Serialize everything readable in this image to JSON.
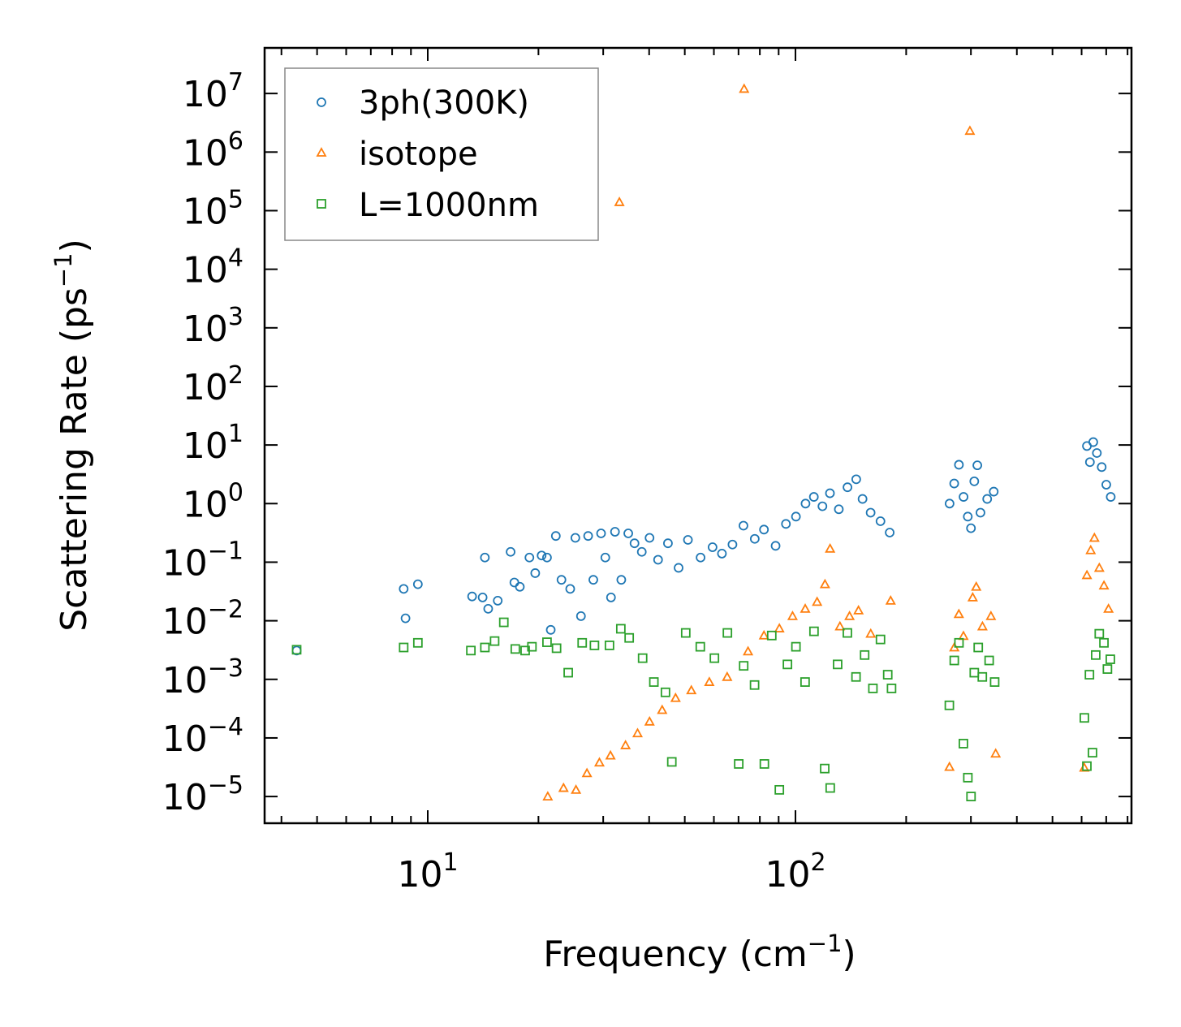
{
  "chart_data": {
    "type": "scatter",
    "title": "",
    "xlabel": "Frequency (cm",
    "xlabel_sup": "−1",
    "xlabel_end": ")",
    "ylabel": "Scattering Rate (ps",
    "ylabel_sup": "−1",
    "ylabel_end": ")",
    "xscale": "log",
    "yscale": "log",
    "xlim": [
      3.6,
      820
    ],
    "ylim": [
      3.5e-06,
      60000000.0
    ],
    "x_ticks": [
      {
        "value": 10,
        "base": "10",
        "exp": "1"
      },
      {
        "value": 100,
        "base": "10",
        "exp": "2"
      }
    ],
    "y_ticks": [
      {
        "value": 1e-05,
        "base": "10",
        "exp": "−5"
      },
      {
        "value": 0.0001,
        "base": "10",
        "exp": "−4"
      },
      {
        "value": 0.001,
        "base": "10",
        "exp": "−3"
      },
      {
        "value": 0.01,
        "base": "10",
        "exp": "−2"
      },
      {
        "value": 0.1,
        "base": "10",
        "exp": "−1"
      },
      {
        "value": 1,
        "base": "10",
        "exp": "0"
      },
      {
        "value": 10,
        "base": "10",
        "exp": "1"
      },
      {
        "value": 100,
        "base": "10",
        "exp": "2"
      },
      {
        "value": 1000,
        "base": "10",
        "exp": "3"
      },
      {
        "value": 10000,
        "base": "10",
        "exp": "4"
      },
      {
        "value": 100000,
        "base": "10",
        "exp": "5"
      },
      {
        "value": 1000000,
        "base": "10",
        "exp": "6"
      },
      {
        "value": 10000000,
        "base": "10",
        "exp": "7"
      }
    ],
    "legend_position": "top-left",
    "series": [
      {
        "name": "3ph(300K)",
        "marker": "circle",
        "color": "#1f77b4",
        "points": [
          [
            4.4,
            0.0031
          ],
          [
            8.6,
            0.035
          ],
          [
            8.7,
            0.011
          ],
          [
            9.4,
            0.042
          ],
          [
            13.2,
            0.026
          ],
          [
            14.1,
            0.025
          ],
          [
            14.3,
            0.12
          ],
          [
            14.6,
            0.016
          ],
          [
            15.5,
            0.022
          ],
          [
            16.8,
            0.15
          ],
          [
            17.2,
            0.045
          ],
          [
            17.8,
            0.038
          ],
          [
            18.9,
            0.12
          ],
          [
            19.6,
            0.065
          ],
          [
            20.4,
            0.13
          ],
          [
            21.1,
            0.12
          ],
          [
            21.6,
            0.007
          ],
          [
            22.3,
            0.28
          ],
          [
            23.1,
            0.05
          ],
          [
            24.4,
            0.035
          ],
          [
            25.2,
            0.26
          ],
          [
            26.1,
            0.012
          ],
          [
            27.3,
            0.28
          ],
          [
            28.2,
            0.05
          ],
          [
            29.6,
            0.31
          ],
          [
            30.4,
            0.12
          ],
          [
            31.5,
            0.025
          ],
          [
            32.3,
            0.33
          ],
          [
            33.6,
            0.05
          ],
          [
            35.1,
            0.31
          ],
          [
            36.5,
            0.21
          ],
          [
            38.2,
            0.15
          ],
          [
            40.1,
            0.26
          ],
          [
            42.3,
            0.11
          ],
          [
            45.0,
            0.21
          ],
          [
            48.1,
            0.08
          ],
          [
            51.0,
            0.24
          ],
          [
            55.2,
            0.12
          ],
          [
            59.5,
            0.18
          ],
          [
            63.1,
            0.14
          ],
          [
            67.4,
            0.2
          ],
          [
            72.2,
            0.42
          ],
          [
            77.5,
            0.25
          ],
          [
            82.1,
            0.36
          ],
          [
            88.3,
            0.19
          ],
          [
            94.2,
            0.45
          ],
          [
            100.3,
            0.6
          ],
          [
            106.5,
            1.0
          ],
          [
            112.2,
            1.3
          ],
          [
            118.4,
            0.9
          ],
          [
            124.1,
            1.5
          ],
          [
            131.2,
            0.8
          ],
          [
            138.5,
            1.9
          ],
          [
            146.3,
            2.6
          ],
          [
            152.2,
            1.2
          ],
          [
            160.1,
            0.7
          ],
          [
            170.3,
            0.5
          ],
          [
            180.4,
            0.32
          ],
          [
            262.5,
            1.0
          ],
          [
            270.2,
            2.2
          ],
          [
            278.3,
            4.6
          ],
          [
            286.5,
            1.3
          ],
          [
            294.2,
            0.6
          ],
          [
            300.1,
            0.38
          ],
          [
            306.4,
            2.4
          ],
          [
            312.3,
            4.5
          ],
          [
            318.5,
            0.7
          ],
          [
            332.2,
            1.2
          ],
          [
            346.1,
            1.6
          ],
          [
            620.3,
            9.6
          ],
          [
            632.1,
            5.1
          ],
          [
            645.4,
            11.2
          ],
          [
            660.2,
            7.3
          ],
          [
            680.5,
            4.2
          ],
          [
            700.3,
            2.1
          ],
          [
            720.1,
            1.3
          ]
        ]
      },
      {
        "name": "isotope",
        "marker": "triangle",
        "color": "#ff7f0e",
        "points": [
          [
            21.2,
            1e-05
          ],
          [
            23.4,
            1.4e-05
          ],
          [
            25.3,
            1.3e-05
          ],
          [
            27.1,
            2.5e-05
          ],
          [
            29.3,
            3.8e-05
          ],
          [
            31.4,
            5e-05
          ],
          [
            33.2,
            140000.0
          ],
          [
            34.5,
            7.5e-05
          ],
          [
            37.2,
            0.00012
          ],
          [
            40.1,
            0.00019
          ],
          [
            43.4,
            0.0003
          ],
          [
            47.2,
            0.00048
          ],
          [
            52.1,
            0.00065
          ],
          [
            58.3,
            0.0009
          ],
          [
            65.2,
            0.0011
          ],
          [
            72.5,
            12000000.0
          ],
          [
            74.3,
            0.003
          ],
          [
            82.1,
            0.0056
          ],
          [
            90.4,
            0.0074
          ],
          [
            98.2,
            0.012
          ],
          [
            106.3,
            0.016
          ],
          [
            114.5,
            0.021
          ],
          [
            120.3,
            0.042
          ],
          [
            124.2,
            0.17
          ],
          [
            132.1,
            0.008
          ],
          [
            140.3,
            0.012
          ],
          [
            148.4,
            0.015
          ],
          [
            160.2,
            0.006
          ],
          [
            181.5,
            0.022
          ],
          [
            262.3,
            3.2e-05
          ],
          [
            270.4,
            0.0035
          ],
          [
            278.2,
            0.013
          ],
          [
            286.3,
            0.0055
          ],
          [
            298.1,
            2300000.0
          ],
          [
            303.4,
            0.025
          ],
          [
            310.2,
            0.038
          ],
          [
            322.5,
            0.008
          ],
          [
            340.1,
            0.012
          ],
          [
            350.3,
            5.4e-05
          ],
          [
            610.2,
            3.1e-05
          ],
          [
            620.4,
            0.06
          ],
          [
            635.2,
            0.16
          ],
          [
            650.1,
            0.26
          ],
          [
            670.3,
            0.08
          ],
          [
            690.2,
            0.04
          ],
          [
            710.1,
            0.016
          ]
        ]
      },
      {
        "name": "L=1000nm",
        "marker": "square",
        "color": "#2ca02c",
        "points": [
          [
            4.4,
            0.0032
          ],
          [
            8.6,
            0.0035
          ],
          [
            9.4,
            0.0042
          ],
          [
            13.1,
            0.0031
          ],
          [
            14.3,
            0.0035
          ],
          [
            15.2,
            0.0045
          ],
          [
            16.1,
            0.0094
          ],
          [
            17.3,
            0.0033
          ],
          [
            18.4,
            0.0031
          ],
          [
            19.2,
            0.0036
          ],
          [
            21.1,
            0.0043
          ],
          [
            22.4,
            0.0034
          ],
          [
            24.1,
            0.0013
          ],
          [
            26.3,
            0.0042
          ],
          [
            28.4,
            0.0038
          ],
          [
            31.2,
            0.0038
          ],
          [
            33.5,
            0.0073
          ],
          [
            35.3,
            0.0051
          ],
          [
            38.4,
            0.0023
          ],
          [
            41.2,
            0.0009
          ],
          [
            44.3,
            0.0006
          ],
          [
            46.1,
            3.9e-05
          ],
          [
            50.3,
            0.0062
          ],
          [
            55.1,
            0.0036
          ],
          [
            60.2,
            0.0023
          ],
          [
            65.3,
            0.0062
          ],
          [
            70.1,
            3.6e-05
          ],
          [
            72.3,
            0.0017
          ],
          [
            77.4,
            0.0008
          ],
          [
            82.3,
            3.6e-05
          ],
          [
            86.2,
            0.0056
          ],
          [
            90.4,
            1.3e-05
          ],
          [
            95.1,
            0.0018
          ],
          [
            100.3,
            0.0036
          ],
          [
            106.2,
            0.0009
          ],
          [
            112.3,
            0.0066
          ],
          [
            120.1,
            3e-05
          ],
          [
            124.3,
            1.4e-05
          ],
          [
            130.2,
            0.0018
          ],
          [
            138.4,
            0.0062
          ],
          [
            146.1,
            0.0011
          ],
          [
            154.2,
            0.0026
          ],
          [
            162.4,
            0.0007
          ],
          [
            170.3,
            0.0048
          ],
          [
            178.2,
            0.0012
          ],
          [
            182.5,
            0.0007
          ],
          [
            262.1,
            0.00036
          ],
          [
            270.3,
            0.0021
          ],
          [
            278.4,
            0.0042
          ],
          [
            286.2,
            8e-05
          ],
          [
            294.3,
            2.1e-05
          ],
          [
            300.2,
            1e-05
          ],
          [
            306.4,
            0.0013
          ],
          [
            314.1,
            0.0035
          ],
          [
            322.2,
            0.0011
          ],
          [
            336.3,
            0.0021
          ],
          [
            348.1,
            0.0009
          ],
          [
            610.4,
            0.00022
          ],
          [
            620.1,
            3.3e-05
          ],
          [
            630.2,
            0.0012
          ],
          [
            642.3,
            5.6e-05
          ],
          [
            655.4,
            0.0026
          ],
          [
            670.2,
            0.006
          ],
          [
            690.1,
            0.0042
          ],
          [
            705.3,
            0.0015
          ],
          [
            718.2,
            0.0022
          ]
        ]
      }
    ]
  }
}
